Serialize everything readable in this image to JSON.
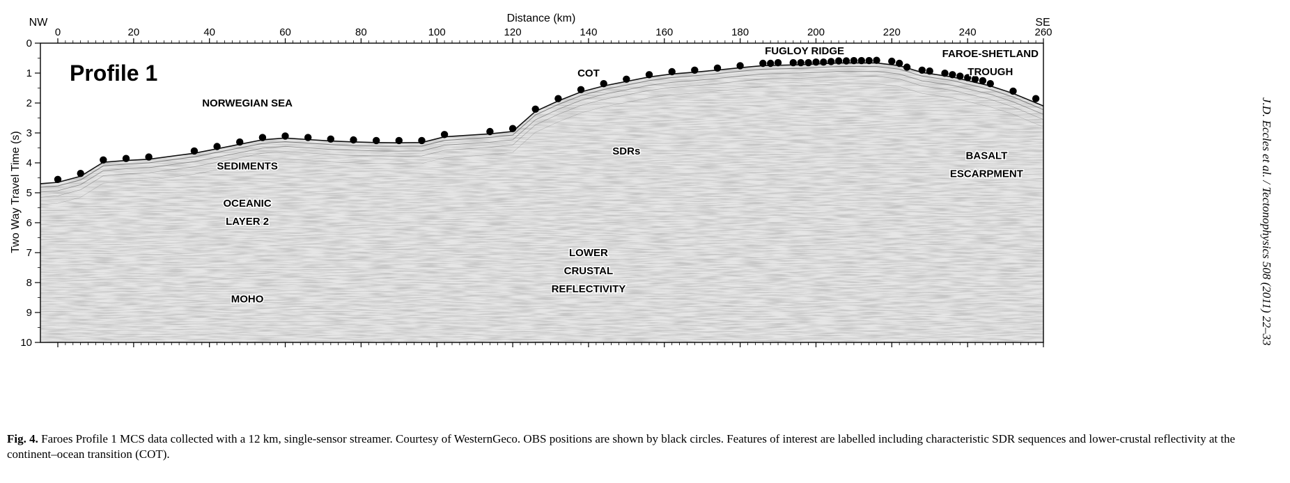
{
  "figure": {
    "corner_labels": {
      "left": "NW",
      "right": "SE"
    },
    "x_axis": {
      "label": "Distance (km)",
      "range": [
        0,
        260
      ],
      "ticks": [
        "0",
        "20",
        "40",
        "60",
        "80",
        "100",
        "120",
        "140",
        "160",
        "180",
        "200",
        "220",
        "240",
        "260"
      ],
      "tick_values": [
        0,
        20,
        40,
        60,
        80,
        100,
        120,
        140,
        160,
        180,
        200,
        220,
        240,
        260
      ]
    },
    "y_axis": {
      "label": "Two Way Travel Time (s)",
      "range": [
        0,
        10
      ],
      "ticks": [
        "0",
        "1",
        "2",
        "3",
        "4",
        "5",
        "6",
        "7",
        "8",
        "9",
        "10"
      ],
      "tick_values": [
        0,
        1,
        2,
        3,
        4,
        5,
        6,
        7,
        8,
        9,
        10
      ]
    },
    "panel_title": "Profile 1",
    "feature_labels": [
      {
        "id": "norwegian-sea",
        "lines": [
          "NORWEGIAN SEA"
        ],
        "x_km": 50,
        "t_s": 2.0
      },
      {
        "id": "sediments",
        "lines": [
          "SEDIMENTS"
        ],
        "x_km": 50,
        "t_s": 4.1
      },
      {
        "id": "oceanic-layer-2",
        "lines": [
          "OCEANIC",
          "LAYER 2"
        ],
        "x_km": 50,
        "t_s": 5.35
      },
      {
        "id": "moho",
        "lines": [
          "MOHO"
        ],
        "x_km": 50,
        "t_s": 8.55
      },
      {
        "id": "cot",
        "lines": [
          "COT"
        ],
        "x_km": 140,
        "t_s": 1.0
      },
      {
        "id": "sdrs",
        "lines": [
          "SDRs"
        ],
        "x_km": 150,
        "t_s": 3.6
      },
      {
        "id": "lower-crustal-reflectivity",
        "lines": [
          "LOWER",
          "CRUSTAL",
          "REFLECTIVITY"
        ],
        "x_km": 140,
        "t_s": 7.0
      },
      {
        "id": "fugloy-ridge",
        "lines": [
          "FUGLOY  RIDGE"
        ],
        "x_km": 197,
        "t_s": 0.25
      },
      {
        "id": "faroe-shetland-trough",
        "lines": [
          "FAROE-SHETLAND",
          "TROUGH"
        ],
        "x_km": 246,
        "t_s": 0.35
      },
      {
        "id": "basalt-escarpment",
        "lines": [
          "BASALT",
          "ESCARPMENT"
        ],
        "x_km": 245,
        "t_s": 3.75
      }
    ],
    "obs_positions": [
      [
        0,
        4.6
      ],
      [
        6,
        4.4
      ],
      [
        12,
        3.95
      ],
      [
        18,
        3.9
      ],
      [
        24,
        3.85
      ],
      [
        36,
        3.65
      ],
      [
        42,
        3.5
      ],
      [
        48,
        3.35
      ],
      [
        54,
        3.2
      ],
      [
        60,
        3.15
      ],
      [
        66,
        3.2
      ],
      [
        72,
        3.25
      ],
      [
        78,
        3.28
      ],
      [
        84,
        3.3
      ],
      [
        90,
        3.3
      ],
      [
        96,
        3.3
      ],
      [
        102,
        3.1
      ],
      [
        114,
        3.0
      ],
      [
        120,
        2.9
      ],
      [
        126,
        2.25
      ],
      [
        132,
        1.9
      ],
      [
        138,
        1.6
      ],
      [
        144,
        1.4
      ],
      [
        150,
        1.25
      ],
      [
        156,
        1.1
      ],
      [
        162,
        1.0
      ],
      [
        168,
        0.95
      ],
      [
        174,
        0.88
      ],
      [
        180,
        0.8
      ],
      [
        186,
        0.72
      ],
      [
        188,
        0.72
      ],
      [
        190,
        0.7
      ],
      [
        194,
        0.7
      ],
      [
        196,
        0.7
      ],
      [
        198,
        0.7
      ],
      [
        200,
        0.68
      ],
      [
        202,
        0.68
      ],
      [
        204,
        0.66
      ],
      [
        206,
        0.64
      ],
      [
        208,
        0.64
      ],
      [
        210,
        0.63
      ],
      [
        212,
        0.63
      ],
      [
        214,
        0.63
      ],
      [
        216,
        0.62
      ],
      [
        220,
        0.65
      ],
      [
        222,
        0.72
      ],
      [
        224,
        0.85
      ],
      [
        228,
        0.95
      ],
      [
        230,
        0.98
      ],
      [
        234,
        1.05
      ],
      [
        236,
        1.1
      ],
      [
        238,
        1.15
      ],
      [
        240,
        1.2
      ],
      [
        242,
        1.25
      ],
      [
        244,
        1.3
      ],
      [
        246,
        1.4
      ],
      [
        252,
        1.65
      ],
      [
        258,
        1.9
      ]
    ],
    "seafloor": [
      [
        -5,
        4.7
      ],
      [
        0,
        4.65
      ],
      [
        6,
        4.45
      ],
      [
        12,
        3.98
      ],
      [
        18,
        3.92
      ],
      [
        24,
        3.88
      ],
      [
        36,
        3.68
      ],
      [
        42,
        3.53
      ],
      [
        48,
        3.38
      ],
      [
        54,
        3.23
      ],
      [
        60,
        3.17
      ],
      [
        66,
        3.22
      ],
      [
        72,
        3.27
      ],
      [
        78,
        3.3
      ],
      [
        84,
        3.32
      ],
      [
        90,
        3.33
      ],
      [
        96,
        3.32
      ],
      [
        102,
        3.13
      ],
      [
        114,
        3.03
      ],
      [
        120,
        2.95
      ],
      [
        126,
        2.28
      ],
      [
        132,
        1.93
      ],
      [
        138,
        1.63
      ],
      [
        144,
        1.43
      ],
      [
        150,
        1.28
      ],
      [
        156,
        1.13
      ],
      [
        162,
        1.03
      ],
      [
        168,
        0.97
      ],
      [
        174,
        0.9
      ],
      [
        180,
        0.82
      ],
      [
        186,
        0.75
      ],
      [
        196,
        0.72
      ],
      [
        206,
        0.66
      ],
      [
        216,
        0.66
      ],
      [
        222,
        0.75
      ],
      [
        228,
        0.98
      ],
      [
        236,
        1.13
      ],
      [
        246,
        1.43
      ],
      [
        252,
        1.68
      ],
      [
        260,
        2.1
      ],
      [
        265,
        2.3
      ]
    ]
  },
  "sidebar_citation": "J.D. Eccles et al. / Tectonophysics 508 (2011) 22–33",
  "caption": {
    "label": "Fig. 4.",
    "text": " Faroes Profile 1 MCS data collected with a 12 km, single-sensor streamer. Courtesy of WesternGeco. OBS positions are shown by black circles. Features of interest are labelled including characteristic SDR sequences and lower-crustal reflectivity at the continent–ocean transition (COT)."
  }
}
